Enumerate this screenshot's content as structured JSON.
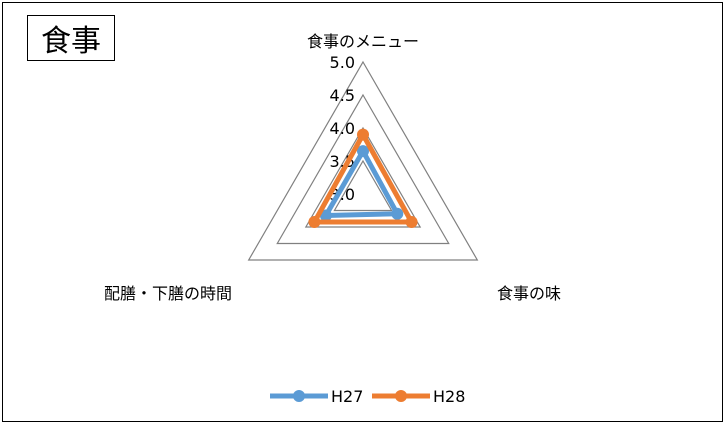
{
  "section_title": "食事",
  "colors": {
    "H27": "#5b9bd5",
    "H28": "#ed7d31",
    "grid": "#808080"
  },
  "chart_data": {
    "type": "radar",
    "axes": [
      "食事のメニュー",
      "食事の味",
      "配膳・下膳の時間"
    ],
    "rlim": [
      3.0,
      5.0
    ],
    "ticks": [
      "3.0",
      "3.5",
      "4.0",
      "4.5",
      "5.0"
    ],
    "series": [
      {
        "name": "H27",
        "values": [
          3.65,
          3.6,
          3.65
        ]
      },
      {
        "name": "H28",
        "values": [
          3.9,
          3.85,
          3.85
        ]
      }
    ],
    "legend_position": "bottom"
  }
}
